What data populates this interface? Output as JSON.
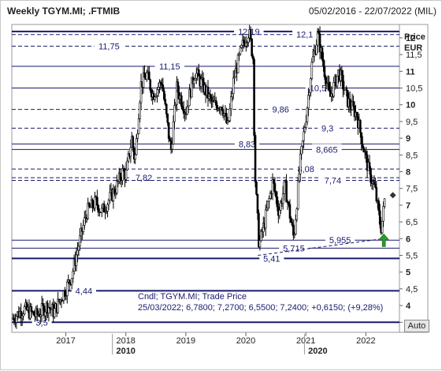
{
  "header": {
    "title": "Weekly TGYM.MI; .FTMIB",
    "date_range": "05/02/2016 - 22/07/2022 (MIL)"
  },
  "auto_button": {
    "label": "Auto"
  },
  "chart_data": {
    "type": "candlestick",
    "symbol": "TGYM.MI",
    "unit_label": [
      "Price",
      "EUR"
    ],
    "ylim": [
      3.2,
      12.4
    ],
    "y_ticks": [
      3.5,
      4,
      4.5,
      5,
      5.5,
      6,
      6.5,
      7,
      7.5,
      8,
      8.5,
      9,
      9.5,
      10,
      10.5,
      11,
      11.5,
      12
    ],
    "y_tick_labels": [
      "3,5",
      "4",
      "4,5",
      "5",
      "5,5",
      "6",
      "6,5",
      "7",
      "7,5",
      "8",
      "8,5",
      "9",
      "9,5",
      "10",
      "10,5",
      "11",
      "11,5",
      "12"
    ],
    "x_range": [
      2016.1,
      2022.56
    ],
    "x_ticks": [
      2017,
      2018,
      2019,
      2020,
      2021,
      2022
    ],
    "x_tick_labels": [
      "2017",
      "2018",
      "2019",
      "2020",
      "2021",
      "2022"
    ],
    "x_decade_labels": [
      {
        "x": 2018,
        "label": "2010"
      },
      {
        "x": 2021.2,
        "label": "2020"
      }
    ],
    "grid": false,
    "levels": [
      {
        "value": 12.19,
        "label": "12,19",
        "style": "solid",
        "label_x": 2020.05
      },
      {
        "value": 12.1,
        "label": "12,1",
        "style": "dashed",
        "label_x": 2020.98
      },
      {
        "value": 11.75,
        "label": "11,75",
        "style": "dashed",
        "label_x": 2017.72
      },
      {
        "value": 11.15,
        "label": "11,15",
        "style": "solid",
        "label_x": 2018.73
      },
      {
        "value": 10.5,
        "label": "10,5",
        "style": "solid",
        "label_x": 2021.2
      },
      {
        "value": 9.86,
        "label": "9,86",
        "style": "dashed",
        "label_x": 2020.58
      },
      {
        "value": 9.3,
        "label": "9,3",
        "style": "dashed",
        "label_x": 2021.36
      },
      {
        "value": 8.83,
        "label": "8,83",
        "style": "solid",
        "label_x": 2020.02
      },
      {
        "value": 8.665,
        "label": "8,665",
        "style": "solid",
        "label_x": 2021.35
      },
      {
        "value": 8.08,
        "label": "8,08",
        "style": "dashed",
        "label_x": 2021.0
      },
      {
        "value": 7.82,
        "label": "7,82",
        "style": "dashed",
        "label_x": 2018.3
      },
      {
        "value": 7.74,
        "label": "7,74",
        "style": "dashed",
        "label_x": 2021.45
      },
      {
        "value": 5.955,
        "label": "5,955",
        "style": "solid",
        "label_x": 2021.57
      },
      {
        "value": 5.715,
        "label": "5,715",
        "style": "solid",
        "label_x": 2020.8
      },
      {
        "value": 5.41,
        "label": "5,41",
        "style": "solid",
        "label_x": 2020.43
      },
      {
        "value": 4.44,
        "label": "4,44",
        "style": "solid",
        "label_x": 2017.3
      },
      {
        "value": 3.5,
        "label": "3,5",
        "style": "solid",
        "label_x": 2016.6
      }
    ],
    "trendline": {
      "from": [
        2020.2,
        5.5
      ],
      "to": [
        2022.3,
        6.0
      ]
    },
    "price_path": [
      [
        2016.1,
        3.6
      ],
      [
        2016.3,
        3.9
      ],
      [
        2016.5,
        3.7
      ],
      [
        2016.7,
        4.0
      ],
      [
        2016.8,
        3.8
      ],
      [
        2017.0,
        4.5
      ],
      [
        2017.1,
        4.9
      ],
      [
        2017.2,
        5.7
      ],
      [
        2017.35,
        6.8
      ],
      [
        2017.5,
        7.1
      ],
      [
        2017.6,
        6.8
      ],
      [
        2017.8,
        7.4
      ],
      [
        2017.95,
        8.0
      ],
      [
        2018.0,
        7.9
      ],
      [
        2018.1,
        9.0
      ],
      [
        2018.15,
        8.3
      ],
      [
        2018.25,
        10.6
      ],
      [
        2018.35,
        10.9
      ],
      [
        2018.45,
        10.3
      ],
      [
        2018.6,
        10.7
      ],
      [
        2018.75,
        8.6
      ],
      [
        2018.85,
        10.5
      ],
      [
        2019.0,
        9.8
      ],
      [
        2019.15,
        11.0
      ],
      [
        2019.3,
        10.5
      ],
      [
        2019.45,
        10.0
      ],
      [
        2019.6,
        10.0
      ],
      [
        2019.7,
        9.3
      ],
      [
        2019.8,
        10.8
      ],
      [
        2019.95,
        11.8
      ],
      [
        2020.05,
        12.2
      ],
      [
        2020.12,
        11.4
      ],
      [
        2020.15,
        8.0
      ],
      [
        2020.22,
        5.8
      ],
      [
        2020.3,
        6.4
      ],
      [
        2020.45,
        7.7
      ],
      [
        2020.55,
        6.8
      ],
      [
        2020.65,
        7.6
      ],
      [
        2020.8,
        6.0
      ],
      [
        2020.9,
        8.2
      ],
      [
        2021.0,
        9.6
      ],
      [
        2021.1,
        11.2
      ],
      [
        2021.2,
        12.1
      ],
      [
        2021.3,
        11.1
      ],
      [
        2021.4,
        10.2
      ],
      [
        2021.55,
        11.0
      ],
      [
        2021.7,
        10.1
      ],
      [
        2021.85,
        9.7
      ],
      [
        2021.95,
        8.8
      ],
      [
        2022.05,
        8.0
      ],
      [
        2022.15,
        7.5
      ],
      [
        2022.25,
        6.3
      ],
      [
        2022.28,
        6.6
      ],
      [
        2022.32,
        7.3
      ]
    ],
    "last_marker": {
      "x": 2022.45,
      "value": 7.3
    },
    "signal_arrow": {
      "x": 2022.3,
      "value": 5.95
    },
    "info_box": {
      "line1": "Cndl; TGYM.MI; Trade Price",
      "line2": "25/03/2022; 6,7800; 7,2700; 6,5500; 7,2400; +0,6150; (+9,28%)"
    },
    "colors": {
      "candle": "#000000",
      "level": "#1a1a6e",
      "label": "#1a1a6e",
      "signal": "#2a9a2a"
    }
  }
}
